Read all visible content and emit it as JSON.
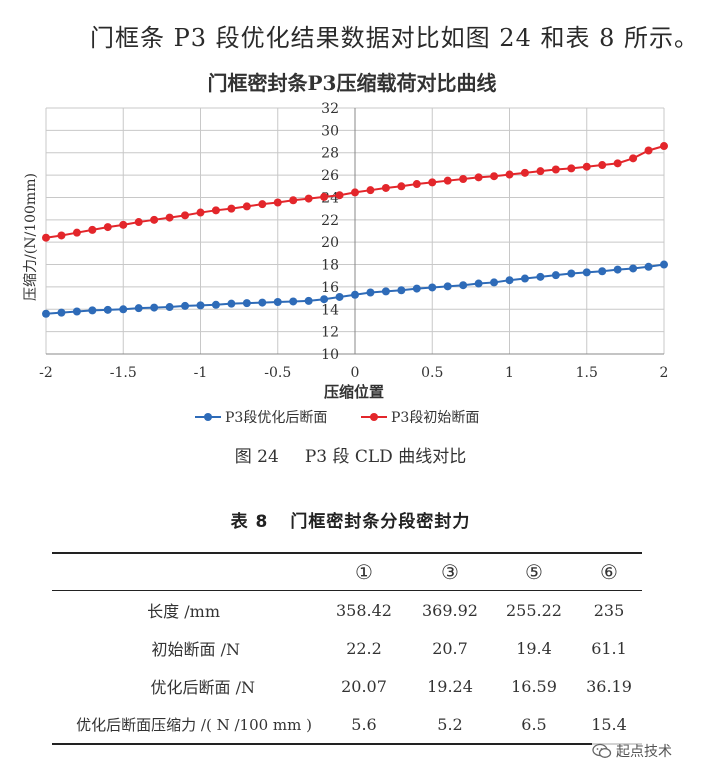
{
  "intro_text": "门框条 P3 段优化结果数据对比如图 24 和表 8 所示。",
  "figure": {
    "number": "图 24",
    "caption": "P3 段 CLD 曲线对比"
  },
  "chart_data": {
    "type": "line",
    "title": "门框密封条P3压缩载荷对比曲线",
    "xlabel": "压缩位置",
    "ylabel": "压缩力/(N/100mm)",
    "xlim": [
      -2,
      2
    ],
    "ylim": [
      10,
      32
    ],
    "xticks": [
      "-2",
      "-1.5",
      "-1",
      "-0.5",
      "0",
      "0.5",
      "1",
      "1.5",
      "2"
    ],
    "yticks": [
      "10",
      "12",
      "14",
      "16",
      "18",
      "20",
      "22",
      "24",
      "26",
      "28",
      "30",
      "32"
    ],
    "grid": true,
    "legend_position": "bottom",
    "x": [
      -2.0,
      -1.9,
      -1.8,
      -1.7,
      -1.6,
      -1.5,
      -1.4,
      -1.3,
      -1.2,
      -1.1,
      -1.0,
      -0.9,
      -0.8,
      -0.7,
      -0.6,
      -0.5,
      -0.4,
      -0.3,
      -0.2,
      -0.1,
      0.0,
      0.1,
      0.2,
      0.3,
      0.4,
      0.5,
      0.6,
      0.7,
      0.8,
      0.9,
      1.0,
      1.1,
      1.2,
      1.3,
      1.4,
      1.5,
      1.6,
      1.7,
      1.8,
      1.9,
      2.0
    ],
    "series": [
      {
        "name": "P3段优化后断面",
        "color": "#2e6bb8",
        "values": [
          13.6,
          13.7,
          13.8,
          13.9,
          13.95,
          14.0,
          14.1,
          14.15,
          14.2,
          14.3,
          14.35,
          14.4,
          14.5,
          14.55,
          14.6,
          14.65,
          14.7,
          14.75,
          14.9,
          15.1,
          15.3,
          15.5,
          15.6,
          15.7,
          15.85,
          15.95,
          16.05,
          16.15,
          16.3,
          16.4,
          16.6,
          16.75,
          16.9,
          17.05,
          17.2,
          17.3,
          17.4,
          17.55,
          17.65,
          17.8,
          18.0
        ]
      },
      {
        "name": "P3段初始断面",
        "color": "#e3262b",
        "values": [
          20.4,
          20.6,
          20.85,
          21.1,
          21.35,
          21.55,
          21.8,
          22.0,
          22.2,
          22.4,
          22.65,
          22.85,
          23.0,
          23.2,
          23.4,
          23.55,
          23.75,
          23.9,
          24.05,
          24.2,
          24.45,
          24.65,
          24.85,
          25.0,
          25.2,
          25.35,
          25.5,
          25.65,
          25.8,
          25.9,
          26.05,
          26.2,
          26.35,
          26.5,
          26.6,
          26.75,
          26.9,
          27.05,
          27.5,
          28.2,
          28.6
        ]
      }
    ]
  },
  "table": {
    "number": "表 8",
    "title": "门框密封条分段密封力",
    "columns": [
      "",
      "①",
      "③",
      "⑤",
      "⑥"
    ],
    "rows": [
      {
        "label": "长度 /mm",
        "values": [
          "358.42",
          "369.92",
          "255.22",
          "235"
        ]
      },
      {
        "label": "初始断面 /N",
        "values": [
          "22.2",
          "20.7",
          "19.4",
          "61.1"
        ]
      },
      {
        "label": "优化后断面 /N",
        "values": [
          "20.07",
          "19.24",
          "16.59",
          "36.19"
        ]
      },
      {
        "label": "优化后断面压缩力 /( N /100 mm )",
        "values": [
          "5.6",
          "5.2",
          "6.5",
          "15.4"
        ]
      }
    ]
  },
  "watermark": {
    "text": "起点技术",
    "icon": "wechat-icon"
  }
}
